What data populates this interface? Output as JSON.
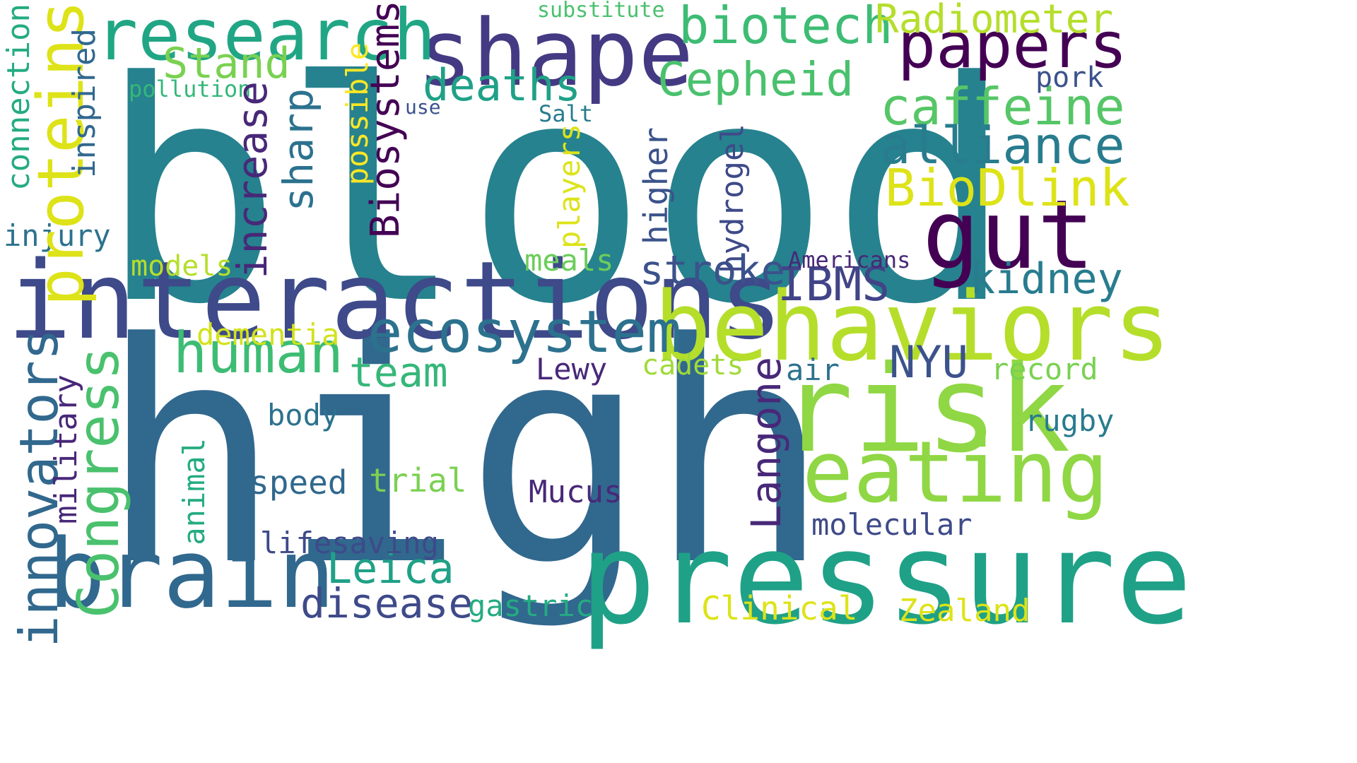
{
  "wordcloud": {
    "words": [
      {
        "text": "blood",
        "color": "#26828e",
        "vertical": false
      },
      {
        "text": "high",
        "color": "#31688e",
        "vertical": false
      },
      {
        "text": "interactions",
        "color": "#3e4a89",
        "vertical": false
      },
      {
        "text": "pressure",
        "color": "#1fa187",
        "vertical": false
      },
      {
        "text": "shape",
        "color": "#443a83",
        "vertical": false
      },
      {
        "text": "behaviors",
        "color": "#b5de2b",
        "vertical": false
      },
      {
        "text": "risk",
        "color": "#8fd744",
        "vertical": false
      },
      {
        "text": "brain",
        "color": "#31688e",
        "vertical": false
      },
      {
        "text": "eating",
        "color": "#8fd744",
        "vertical": false
      },
      {
        "text": "research",
        "color": "#21a685",
        "vertical": false
      },
      {
        "text": "gut",
        "color": "#440154",
        "vertical": false
      },
      {
        "text": "papers",
        "color": "#440154",
        "vertical": false
      },
      {
        "text": "biotech",
        "color": "#3dbc74",
        "vertical": false
      },
      {
        "text": "ecosystem",
        "color": "#2c728e",
        "vertical": false
      },
      {
        "text": "human",
        "color": "#3dbc74",
        "vertical": false
      },
      {
        "text": "caffeine",
        "color": "#56c667",
        "vertical": false
      },
      {
        "text": "alliance",
        "color": "#287c8e",
        "vertical": false
      },
      {
        "text": "BioDlink",
        "color": "#dde318",
        "vertical": false
      },
      {
        "text": "Cepheid",
        "color": "#4ac16d",
        "vertical": false
      },
      {
        "text": "Radiometer",
        "color": "#b5de2b",
        "vertical": false
      },
      {
        "text": "deaths",
        "color": "#1fa187",
        "vertical": false
      },
      {
        "text": "Stand",
        "color": "#7ad151",
        "vertical": false
      },
      {
        "text": "stroke",
        "color": "#3b528b",
        "vertical": false
      },
      {
        "text": "IBMS",
        "color": "#414487",
        "vertical": false
      },
      {
        "text": "kidney",
        "color": "#287c8e",
        "vertical": false
      },
      {
        "text": "NYU",
        "color": "#3b528b",
        "vertical": false
      },
      {
        "text": "team",
        "color": "#35b779",
        "vertical": false
      },
      {
        "text": "disease",
        "color": "#3e4a89",
        "vertical": false
      },
      {
        "text": "Leica",
        "color": "#1fa187",
        "vertical": false
      },
      {
        "text": "record",
        "color": "#7ad151",
        "vertical": false
      },
      {
        "text": "rugby",
        "color": "#287c8e",
        "vertical": false
      },
      {
        "text": "molecular",
        "color": "#3e4a89",
        "vertical": false
      },
      {
        "text": "Mucus",
        "color": "#482878",
        "vertical": false
      },
      {
        "text": "Lewy",
        "color": "#482878",
        "vertical": false
      },
      {
        "text": "body",
        "color": "#2c728e",
        "vertical": false
      },
      {
        "text": "speed",
        "color": "#31688e",
        "vertical": false
      },
      {
        "text": "trial",
        "color": "#7ad151",
        "vertical": false
      },
      {
        "text": "lifesaving",
        "color": "#3e4a89",
        "vertical": false
      },
      {
        "text": "gastric",
        "color": "#25ab82",
        "vertical": false
      },
      {
        "text": "Clinical",
        "color": "#dde318",
        "vertical": false
      },
      {
        "text": "Zealand",
        "color": "#dde318",
        "vertical": false
      },
      {
        "text": "dementia",
        "color": "#d2e21b",
        "vertical": false
      },
      {
        "text": "models",
        "color": "#b5de2b",
        "vertical": false
      },
      {
        "text": "meals",
        "color": "#6ccd5a",
        "vertical": false
      },
      {
        "text": "cadets",
        "color": "#a0da39",
        "vertical": false
      },
      {
        "text": "air",
        "color": "#2c728e",
        "vertical": false
      },
      {
        "text": "Americans",
        "color": "#482878",
        "vertical": false
      },
      {
        "text": "injury",
        "color": "#2c728e",
        "vertical": false
      },
      {
        "text": "pollution",
        "color": "#35b779",
        "vertical": false
      },
      {
        "text": "use",
        "color": "#3b528b",
        "vertical": false
      },
      {
        "text": "Salt",
        "color": "#287c8e",
        "vertical": false
      },
      {
        "text": "substitute",
        "color": "#4ac16d",
        "vertical": false
      },
      {
        "text": "pork",
        "color": "#3b528b",
        "vertical": false
      },
      {
        "text": "proteins",
        "color": "#dde318",
        "vertical": true
      },
      {
        "text": "connection",
        "color": "#25ab82",
        "vertical": true
      },
      {
        "text": "inspired",
        "color": "#31688e",
        "vertical": true
      },
      {
        "text": "increase",
        "color": "#482878",
        "vertical": true
      },
      {
        "text": "sharp",
        "color": "#2c728e",
        "vertical": true
      },
      {
        "text": "possible",
        "color": "#fde725",
        "vertical": true
      },
      {
        "text": "Biosystems",
        "color": "#440154",
        "vertical": true
      },
      {
        "text": "players",
        "color": "#dde318",
        "vertical": true
      },
      {
        "text": "higher",
        "color": "#3b528b",
        "vertical": true
      },
      {
        "text": "hydrogel",
        "color": "#3e4a89",
        "vertical": true
      },
      {
        "text": "innovators",
        "color": "#31688e",
        "vertical": true
      },
      {
        "text": "Congress",
        "color": "#4ac16d",
        "vertical": true
      },
      {
        "text": "military",
        "color": "#482878",
        "vertical": true
      },
      {
        "text": "animal",
        "color": "#25ab82",
        "vertical": true
      },
      {
        "text": "Langone",
        "color": "#482878",
        "vertical": true
      }
    ]
  }
}
